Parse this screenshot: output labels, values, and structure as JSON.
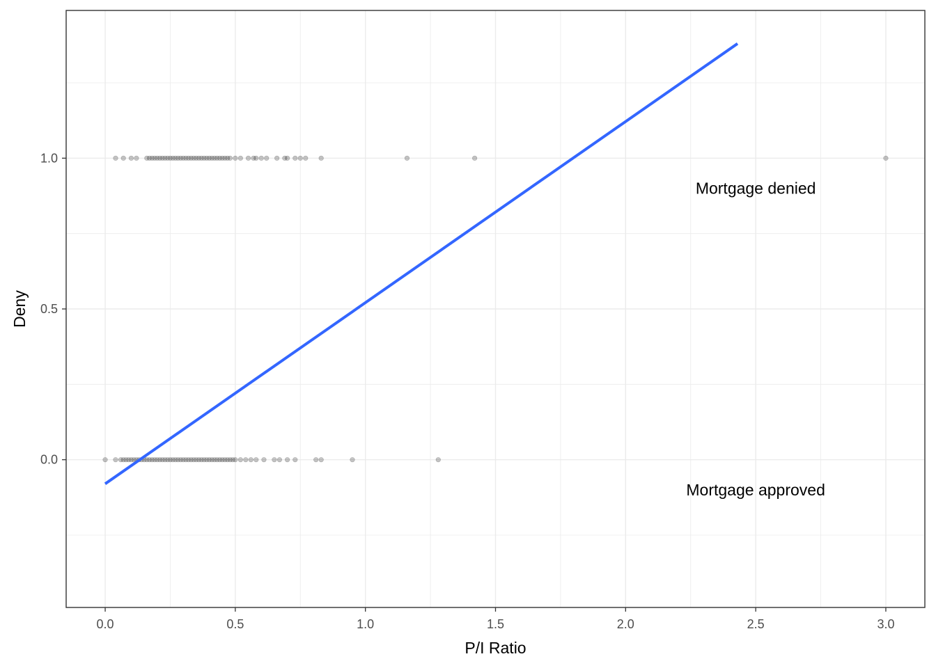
{
  "chart_data": {
    "type": "scatter",
    "xlabel": "P/I Ratio",
    "ylabel": "Deny",
    "xlim": [
      -0.15,
      3.15
    ],
    "ylim": [
      -0.49,
      1.49
    ],
    "x_ticks": [
      0.0,
      0.5,
      1.0,
      1.5,
      2.0,
      2.5,
      3.0
    ],
    "x_tick_labels": [
      "0.0",
      "0.5",
      "1.0",
      "1.5",
      "2.0",
      "2.5",
      "3.0"
    ],
    "y_ticks": [
      0.0,
      0.5,
      1.0
    ],
    "y_tick_labels": [
      "0.0",
      "0.5",
      "1.0"
    ],
    "grid": true,
    "colors": {
      "points": "#000000",
      "fit_line": "#3366ff",
      "grid": "#ebebeb",
      "border": "#333333"
    },
    "series": [
      {
        "kind": "points",
        "y": 1,
        "x": [
          0.04,
          0.07,
          0.1,
          0.12,
          0.16,
          0.17,
          0.18,
          0.19,
          0.2,
          0.21,
          0.22,
          0.23,
          0.24,
          0.25,
          0.26,
          0.27,
          0.28,
          0.29,
          0.3,
          0.31,
          0.32,
          0.33,
          0.34,
          0.35,
          0.36,
          0.37,
          0.38,
          0.39,
          0.4,
          0.41,
          0.42,
          0.43,
          0.44,
          0.45,
          0.46,
          0.47,
          0.48,
          0.5,
          0.52,
          0.55,
          0.57,
          0.58,
          0.6,
          0.62,
          0.66,
          0.69,
          0.7,
          0.73,
          0.75,
          0.77,
          0.83,
          1.16,
          1.42,
          3.0
        ]
      },
      {
        "kind": "points",
        "y": 0,
        "x": [
          0.0,
          0.04,
          0.06,
          0.07,
          0.08,
          0.09,
          0.1,
          0.11,
          0.12,
          0.13,
          0.14,
          0.15,
          0.16,
          0.17,
          0.18,
          0.19,
          0.2,
          0.21,
          0.22,
          0.23,
          0.24,
          0.25,
          0.26,
          0.27,
          0.28,
          0.29,
          0.3,
          0.31,
          0.32,
          0.33,
          0.34,
          0.35,
          0.36,
          0.37,
          0.38,
          0.39,
          0.4,
          0.41,
          0.42,
          0.43,
          0.44,
          0.45,
          0.46,
          0.47,
          0.48,
          0.49,
          0.5,
          0.52,
          0.54,
          0.56,
          0.58,
          0.61,
          0.65,
          0.67,
          0.7,
          0.73,
          0.81,
          0.83,
          0.95,
          1.28
        ]
      },
      {
        "kind": "fit_line",
        "x": [
          0.0,
          2.43
        ],
        "y": [
          -0.08,
          1.38
        ]
      }
    ],
    "annotations": [
      {
        "text": "Mortgage denied",
        "x": 2.5,
        "y": 0.9
      },
      {
        "text": "Mortgage approved",
        "x": 2.5,
        "y": -0.1
      }
    ]
  }
}
